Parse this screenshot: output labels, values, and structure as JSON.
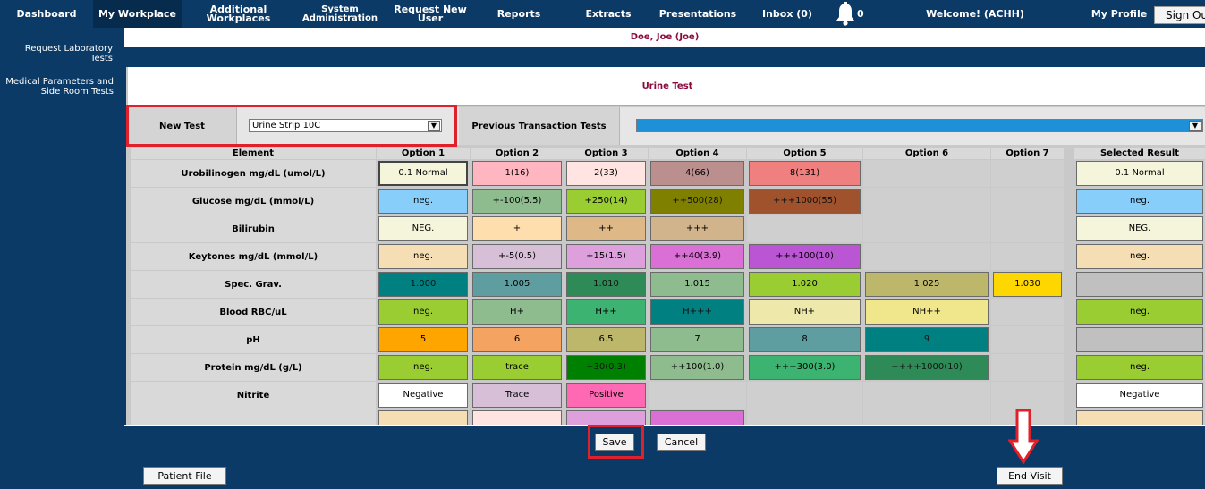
{
  "nav": {
    "items": [
      {
        "label": "Dashboard"
      },
      {
        "label": "My Workplace"
      },
      {
        "label": "Additional Workplaces"
      },
      {
        "label": "System Administration"
      },
      {
        "label": "Request New User"
      },
      {
        "label": "Reports"
      },
      {
        "label": "Extracts"
      },
      {
        "label": "Presentations"
      },
      {
        "label": "Inbox (0)"
      }
    ],
    "system_line1": "System",
    "system_line2": "Administration",
    "bell_count": "0",
    "welcome": "Welcome! (ACHH)",
    "my_profile": "My Profile",
    "sign_out": "Sign Out"
  },
  "sidebar": {
    "item1": "Request Laboratory Tests",
    "item2_line1": "Medical Parameters and",
    "item2_line2": "Side Room Tests"
  },
  "patient": {
    "name": "Doe, Joe (Joe)"
  },
  "panel": {
    "title": "Urine Test"
  },
  "selectors": {
    "new_test_label": "New Test",
    "new_test_value": "Urine Strip 10C",
    "previous_label": "Previous Transaction Tests",
    "previous_value": ""
  },
  "grid": {
    "headers": [
      "Element",
      "Option 1",
      "Option 2",
      "Option 3",
      "Option 4",
      "Option 5",
      "Option 6",
      "Option 7",
      "Selected Result"
    ],
    "rows": [
      {
        "element": "Urobilinogen mg/dL (umol/L)",
        "options": [
          "0.1 Normal",
          "1(16)",
          "2(33)",
          "4(66)",
          "8(131)",
          "",
          ""
        ],
        "selected": "0.1 Normal"
      },
      {
        "element": "Glucose mg/dL (mmol/L)",
        "options": [
          "neg.",
          "+-100(5.5)",
          "+250(14)",
          "++500(28)",
          "+++1000(55)",
          "",
          ""
        ],
        "selected": "neg."
      },
      {
        "element": "Bilirubin",
        "options": [
          "NEG.",
          "+",
          "++",
          "+++",
          "",
          "",
          ""
        ],
        "selected": "NEG."
      },
      {
        "element": "Keytones mg/dL (mmol/L)",
        "options": [
          "neg.",
          "+-5(0.5)",
          "+15(1.5)",
          "++40(3.9)",
          "+++100(10)",
          "",
          ""
        ],
        "selected": "neg."
      },
      {
        "element": "Spec. Grav.",
        "options": [
          "1.000",
          "1.005",
          "1.010",
          "1.015",
          "1.020",
          "1.025",
          "1.030"
        ],
        "selected": ""
      },
      {
        "element": "Blood RBC/uL",
        "options": [
          "neg.",
          "H+",
          "H++",
          "H+++",
          "NH+",
          "NH++",
          ""
        ],
        "selected": "neg."
      },
      {
        "element": "pH",
        "options": [
          "5",
          "6",
          "6.5",
          "7",
          "8",
          "9",
          ""
        ],
        "selected": ""
      },
      {
        "element": "Protein mg/dL (g/L)",
        "options": [
          "neg.",
          "trace",
          "+30(0.3)",
          "++100(1.0)",
          "+++300(3.0)",
          "++++1000(10)",
          ""
        ],
        "selected": "neg."
      },
      {
        "element": "Nitrite",
        "options": [
          "Negative",
          "Trace",
          "Positive",
          "",
          "",
          "",
          ""
        ],
        "selected": "Negative"
      },
      {
        "element": "",
        "options": [
          "",
          "",
          "",
          "",
          "",
          "",
          ""
        ],
        "selected": ""
      }
    ],
    "colors": [
      [
        "#f5f5dc",
        "#ffb6c1",
        "#ffe4e1",
        "#bc8f8f",
        "#f08080",
        "",
        ""
      ],
      [
        "#87cefa",
        "#8fbc8f",
        "#9acd32",
        "#808000",
        "#a0522d",
        "",
        ""
      ],
      [
        "#f5f5dc",
        "#ffdead",
        "#deb887",
        "#d2b48c",
        "",
        "",
        ""
      ],
      [
        "#f5deb3",
        "#d8bfd8",
        "#dda0dd",
        "#da70d6",
        "#ba55d3",
        "",
        ""
      ],
      [
        "#008080",
        "#5f9ea0",
        "#2e8b57",
        "#8fbc8f",
        "#9acd32",
        "#bdb76b",
        "#ffd700"
      ],
      [
        "#9acd32",
        "#8fbc8f",
        "#3cb371",
        "#008080",
        "#eee8aa",
        "#f0e68c",
        ""
      ],
      [
        "#ffa500",
        "#f4a460",
        "#bdb76b",
        "#8fbc8f",
        "#5f9ea0",
        "#008080",
        ""
      ],
      [
        "#9acd32",
        "#9acd32",
        "#008000",
        "#8fbc8f",
        "#3cb371",
        "#2e8b57",
        ""
      ],
      [
        "#ffffff",
        "#d8bfd8",
        "#ff69b4",
        "",
        "",
        "",
        ""
      ],
      [
        "#f5deb3",
        "#ffe4e1",
        "#dda0dd",
        "#da70d6",
        "",
        "",
        ""
      ]
    ],
    "selected_colors": [
      "#f5f5dc",
      "#87cefa",
      "#f5f5dc",
      "#f5deb3",
      "#c0c0c0",
      "#9acd32",
      "#c0c0c0",
      "#9acd32",
      "#ffffff",
      "#f5deb3"
    ]
  },
  "buttons": {
    "save": "Save",
    "cancel": "Cancel",
    "patient_file": "Patient File",
    "end_visit": "End Visit"
  },
  "theme": {
    "navy": "#0b3a66",
    "highlight_red": "#e0202a",
    "patient_text": "#8b0a3c",
    "select_blue": "#1e90d8"
  }
}
